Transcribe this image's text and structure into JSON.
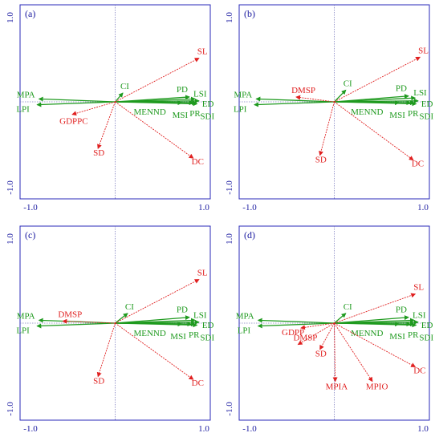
{
  "colors": {
    "response": "#e02020",
    "explanatory": "#1f9a1f",
    "frame": "#2a2ab8",
    "ticks": "#1a1aa0"
  },
  "chart_data": [
    {
      "type": "scatter",
      "title": "(a)",
      "xlim": [
        -1.0,
        1.0
      ],
      "ylim": [
        -1.0,
        1.0
      ],
      "x_ticks": [
        "-1.0",
        "1.0"
      ],
      "y_ticks": [
        "1.0",
        "-1.0"
      ],
      "response_vectors": [
        {
          "name": "SL",
          "x": 0.88,
          "y": 0.45
        },
        {
          "name": "DC",
          "x": 0.82,
          "y": -0.58
        },
        {
          "name": "SD",
          "x": -0.18,
          "y": -0.48
        },
        {
          "name": "GDPPC",
          "x": -0.45,
          "y": -0.13
        }
      ],
      "explanatory_vectors": [
        {
          "name": "MPA",
          "x": -0.8,
          "y": 0.03
        },
        {
          "name": "LPI",
          "x": -0.82,
          "y": -0.03
        },
        {
          "name": "CI",
          "x": 0.08,
          "y": 0.09
        },
        {
          "name": "PD",
          "x": 0.78,
          "y": 0.05
        },
        {
          "name": "LSI",
          "x": 0.84,
          "y": 0.03
        },
        {
          "name": "ED",
          "x": 0.88,
          "y": 0.01
        },
        {
          "name": "SDI",
          "x": 0.86,
          "y": -0.02
        },
        {
          "name": "PR",
          "x": 0.85,
          "y": -0.01
        },
        {
          "name": "MSI",
          "x": 0.82,
          "y": -0.01
        },
        {
          "name": "MENND",
          "x": 0.7,
          "y": -0.01
        }
      ]
    },
    {
      "type": "scatter",
      "title": "(b)",
      "xlim": [
        -1.0,
        1.0
      ],
      "ylim": [
        -1.0,
        1.0
      ],
      "x_ticks": [
        "-1.0",
        "1.0"
      ],
      "y_ticks": [
        "1.0",
        "-1.0"
      ],
      "response_vectors": [
        {
          "name": "SL",
          "x": 0.9,
          "y": 0.46
        },
        {
          "name": "DC",
          "x": 0.83,
          "y": -0.6
        },
        {
          "name": "SD",
          "x": -0.15,
          "y": -0.55
        },
        {
          "name": "DMSP",
          "x": -0.4,
          "y": 0.05
        }
      ],
      "explanatory_vectors": [
        {
          "name": "MPA",
          "x": -0.82,
          "y": 0.03
        },
        {
          "name": "LPI",
          "x": -0.84,
          "y": -0.03
        },
        {
          "name": "CI",
          "x": 0.12,
          "y": 0.12
        },
        {
          "name": "PD",
          "x": 0.78,
          "y": 0.06
        },
        {
          "name": "LSI",
          "x": 0.85,
          "y": 0.04
        },
        {
          "name": "ED",
          "x": 0.88,
          "y": 0.01
        },
        {
          "name": "SDI",
          "x": 0.86,
          "y": -0.02
        },
        {
          "name": "PR",
          "x": 0.84,
          "y": -0.01
        },
        {
          "name": "MSI",
          "x": 0.8,
          "y": -0.01
        },
        {
          "name": "MENND",
          "x": 0.68,
          "y": -0.01
        }
      ]
    },
    {
      "type": "scatter",
      "title": "(c)",
      "xlim": [
        -1.0,
        1.0
      ],
      "ylim": [
        -1.0,
        1.0
      ],
      "x_ticks": [
        "-1.0",
        "1.0"
      ],
      "y_ticks": [
        "1.0",
        "-1.0"
      ],
      "response_vectors": [
        {
          "name": "SL",
          "x": 0.88,
          "y": 0.45
        },
        {
          "name": "DC",
          "x": 0.82,
          "y": -0.58
        },
        {
          "name": "SD",
          "x": -0.18,
          "y": -0.55
        },
        {
          "name": "DMSP",
          "x": -0.55,
          "y": 0.02
        }
      ],
      "explanatory_vectors": [
        {
          "name": "MPA",
          "x": -0.8,
          "y": 0.03
        },
        {
          "name": "LPI",
          "x": -0.82,
          "y": -0.03
        },
        {
          "name": "CI",
          "x": 0.13,
          "y": 0.1
        },
        {
          "name": "PD",
          "x": 0.78,
          "y": 0.06
        },
        {
          "name": "LSI",
          "x": 0.84,
          "y": 0.03
        },
        {
          "name": "ED",
          "x": 0.88,
          "y": 0.01
        },
        {
          "name": "SDI",
          "x": 0.86,
          "y": -0.02
        },
        {
          "name": "PR",
          "x": 0.84,
          "y": -0.01
        },
        {
          "name": "MSI",
          "x": 0.8,
          "y": -0.01
        },
        {
          "name": "MENND",
          "x": 0.7,
          "y": -0.01
        }
      ]
    },
    {
      "type": "scatter",
      "title": "(d)",
      "xlim": [
        -1.0,
        1.0
      ],
      "ylim": [
        -1.0,
        1.0
      ],
      "x_ticks": [
        "-1.0",
        "1.0"
      ],
      "y_ticks": [
        "1.0",
        "-1.0"
      ],
      "response_vectors": [
        {
          "name": "SL",
          "x": 0.85,
          "y": 0.3
        },
        {
          "name": "DC",
          "x": 0.85,
          "y": -0.45
        },
        {
          "name": "SD",
          "x": -0.15,
          "y": -0.27
        },
        {
          "name": "DMSP",
          "x": -0.38,
          "y": -0.22
        },
        {
          "name": "GDPP",
          "x": -0.35,
          "y": -0.05
        },
        {
          "name": "MPIA",
          "x": 0.01,
          "y": -0.6
        },
        {
          "name": "MPIO",
          "x": 0.4,
          "y": -0.6
        }
      ],
      "explanatory_vectors": [
        {
          "name": "MPA",
          "x": -0.8,
          "y": 0.03
        },
        {
          "name": "LPI",
          "x": -0.8,
          "y": -0.03
        },
        {
          "name": "CI",
          "x": 0.12,
          "y": 0.1
        },
        {
          "name": "PD",
          "x": 0.78,
          "y": 0.06
        },
        {
          "name": "LSI",
          "x": 0.84,
          "y": 0.03
        },
        {
          "name": "ED",
          "x": 0.88,
          "y": 0.01
        },
        {
          "name": "SDI",
          "x": 0.86,
          "y": -0.02
        },
        {
          "name": "PR",
          "x": 0.84,
          "y": -0.01
        },
        {
          "name": "MSI",
          "x": 0.8,
          "y": -0.01
        },
        {
          "name": "MENND",
          "x": 0.68,
          "y": -0.01
        }
      ]
    }
  ]
}
